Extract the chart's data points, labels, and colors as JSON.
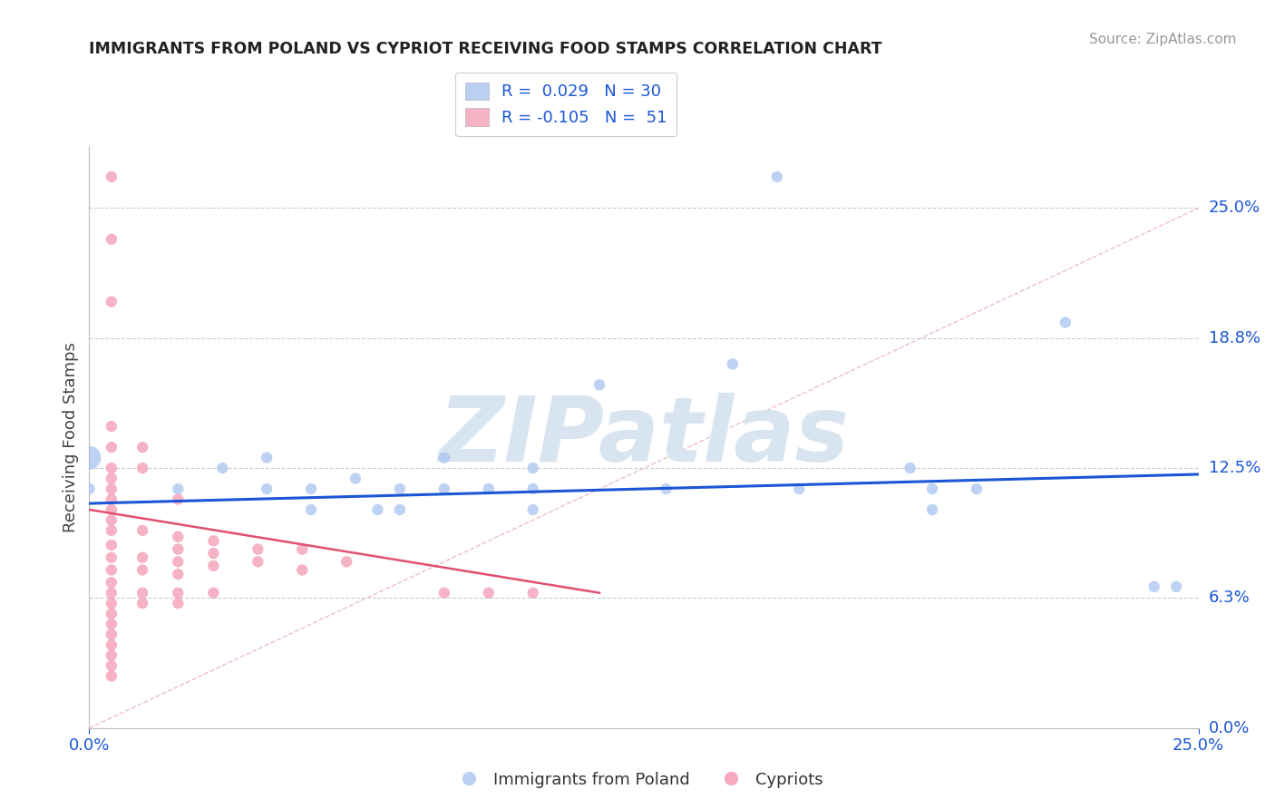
{
  "title": "IMMIGRANTS FROM POLAND VS CYPRIOT RECEIVING FOOD STAMPS CORRELATION CHART",
  "source": "Source: ZipAtlas.com",
  "ylabel": "Receiving Food Stamps",
  "xmin": 0.0,
  "xmax": 0.25,
  "ymin": 0.0,
  "ymax": 0.28,
  "yticks": [
    0.0,
    0.0625,
    0.125,
    0.1875,
    0.25
  ],
  "ytick_labels": [
    "0.0%",
    "6.3%",
    "12.5%",
    "18.8%",
    "25.0%"
  ],
  "xtick_labels": [
    "0.0%",
    "25.0%"
  ],
  "blue_color": "#a8c4f0",
  "pink_color": "#f4a0b8",
  "blue_line_color": "#1a56d6",
  "pink_line_color": "#e05070",
  "dashed_line_color": "#e8c0c8",
  "grid_color": "#c8ccd8",
  "background_color": "#ffffff",
  "poland_scatter": [
    [
      0.0,
      0.13
    ],
    [
      0.0,
      0.115
    ],
    [
      0.02,
      0.115
    ],
    [
      0.03,
      0.125
    ],
    [
      0.04,
      0.13
    ],
    [
      0.04,
      0.115
    ],
    [
      0.05,
      0.115
    ],
    [
      0.05,
      0.105
    ],
    [
      0.06,
      0.12
    ],
    [
      0.065,
      0.105
    ],
    [
      0.07,
      0.115
    ],
    [
      0.07,
      0.105
    ],
    [
      0.08,
      0.13
    ],
    [
      0.08,
      0.115
    ],
    [
      0.09,
      0.115
    ],
    [
      0.1,
      0.125
    ],
    [
      0.1,
      0.115
    ],
    [
      0.1,
      0.105
    ],
    [
      0.115,
      0.165
    ],
    [
      0.13,
      0.115
    ],
    [
      0.145,
      0.175
    ],
    [
      0.155,
      0.265
    ],
    [
      0.16,
      0.115
    ],
    [
      0.185,
      0.125
    ],
    [
      0.19,
      0.115
    ],
    [
      0.19,
      0.105
    ],
    [
      0.2,
      0.115
    ],
    [
      0.22,
      0.195
    ],
    [
      0.24,
      0.068
    ],
    [
      0.245,
      0.068
    ]
  ],
  "poland_sizes": [
    350,
    80,
    80,
    80,
    80,
    80,
    80,
    80,
    80,
    80,
    80,
    80,
    80,
    80,
    80,
    80,
    80,
    80,
    80,
    80,
    80,
    80,
    80,
    80,
    80,
    80,
    80,
    80,
    80,
    80
  ],
  "cypriot_scatter": [
    [
      0.005,
      0.265
    ],
    [
      0.005,
      0.235
    ],
    [
      0.005,
      0.205
    ],
    [
      0.005,
      0.145
    ],
    [
      0.005,
      0.135
    ],
    [
      0.005,
      0.125
    ],
    [
      0.005,
      0.12
    ],
    [
      0.005,
      0.115
    ],
    [
      0.005,
      0.11
    ],
    [
      0.005,
      0.105
    ],
    [
      0.005,
      0.1
    ],
    [
      0.005,
      0.095
    ],
    [
      0.005,
      0.088
    ],
    [
      0.005,
      0.082
    ],
    [
      0.005,
      0.076
    ],
    [
      0.005,
      0.07
    ],
    [
      0.005,
      0.065
    ],
    [
      0.005,
      0.06
    ],
    [
      0.005,
      0.055
    ],
    [
      0.005,
      0.05
    ],
    [
      0.005,
      0.045
    ],
    [
      0.005,
      0.04
    ],
    [
      0.005,
      0.035
    ],
    [
      0.005,
      0.03
    ],
    [
      0.005,
      0.025
    ],
    [
      0.012,
      0.135
    ],
    [
      0.012,
      0.125
    ],
    [
      0.012,
      0.095
    ],
    [
      0.012,
      0.082
    ],
    [
      0.012,
      0.076
    ],
    [
      0.012,
      0.065
    ],
    [
      0.012,
      0.06
    ],
    [
      0.02,
      0.11
    ],
    [
      0.02,
      0.092
    ],
    [
      0.02,
      0.086
    ],
    [
      0.02,
      0.08
    ],
    [
      0.02,
      0.074
    ],
    [
      0.02,
      0.065
    ],
    [
      0.02,
      0.06
    ],
    [
      0.028,
      0.09
    ],
    [
      0.028,
      0.084
    ],
    [
      0.028,
      0.078
    ],
    [
      0.028,
      0.065
    ],
    [
      0.038,
      0.086
    ],
    [
      0.038,
      0.08
    ],
    [
      0.048,
      0.086
    ],
    [
      0.048,
      0.076
    ],
    [
      0.058,
      0.08
    ],
    [
      0.08,
      0.065
    ],
    [
      0.09,
      0.065
    ],
    [
      0.1,
      0.065
    ]
  ],
  "cypriot_sizes": [
    80,
    80,
    80,
    80,
    80,
    80,
    80,
    80,
    80,
    80,
    80,
    80,
    80,
    80,
    80,
    80,
    80,
    80,
    80,
    80,
    80,
    80,
    80,
    80,
    80,
    80,
    80,
    80,
    80,
    80,
    80,
    80,
    80,
    80,
    80,
    80,
    80,
    80,
    80,
    80,
    80,
    80,
    80,
    80,
    80,
    80,
    80,
    80,
    80,
    80,
    80
  ],
  "poland_line_x": [
    0.0,
    0.25
  ],
  "poland_line_y": [
    0.108,
    0.122
  ],
  "cypriot_line_x": [
    0.0,
    0.115
  ],
  "cypriot_line_y": [
    0.105,
    0.065
  ],
  "diag_line_x": [
    0.0,
    0.25
  ],
  "diag_line_y": [
    0.0,
    0.25
  ],
  "watermark": "ZIPatlas",
  "watermark_color": "#d8e4f0"
}
